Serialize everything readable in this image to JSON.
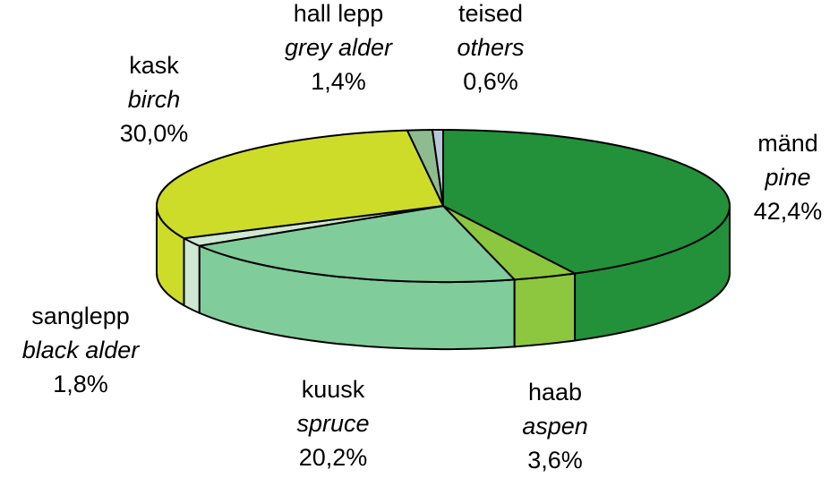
{
  "chart_data": {
    "type": "pie3d",
    "categories": [
      "mänd",
      "haab",
      "kuusk",
      "sanglepp",
      "kask",
      "hall lepp",
      "teised"
    ],
    "categories_en": [
      "pine",
      "aspen",
      "spruce",
      "black alder",
      "birch",
      "grey alder",
      "others"
    ],
    "values": [
      42.4,
      3.6,
      20.2,
      1.8,
      30.0,
      1.4,
      0.6
    ],
    "value_labels": [
      "42,4%",
      "3,6%",
      "20,2%",
      "1,8%",
      "30,0%",
      "1,4%",
      "0,6%"
    ],
    "colors": [
      "#22913a",
      "#8dc63f",
      "#80cc9b",
      "#cfe8d2",
      "#cddc29",
      "#8fbc8f",
      "#b8c8d8"
    ]
  }
}
